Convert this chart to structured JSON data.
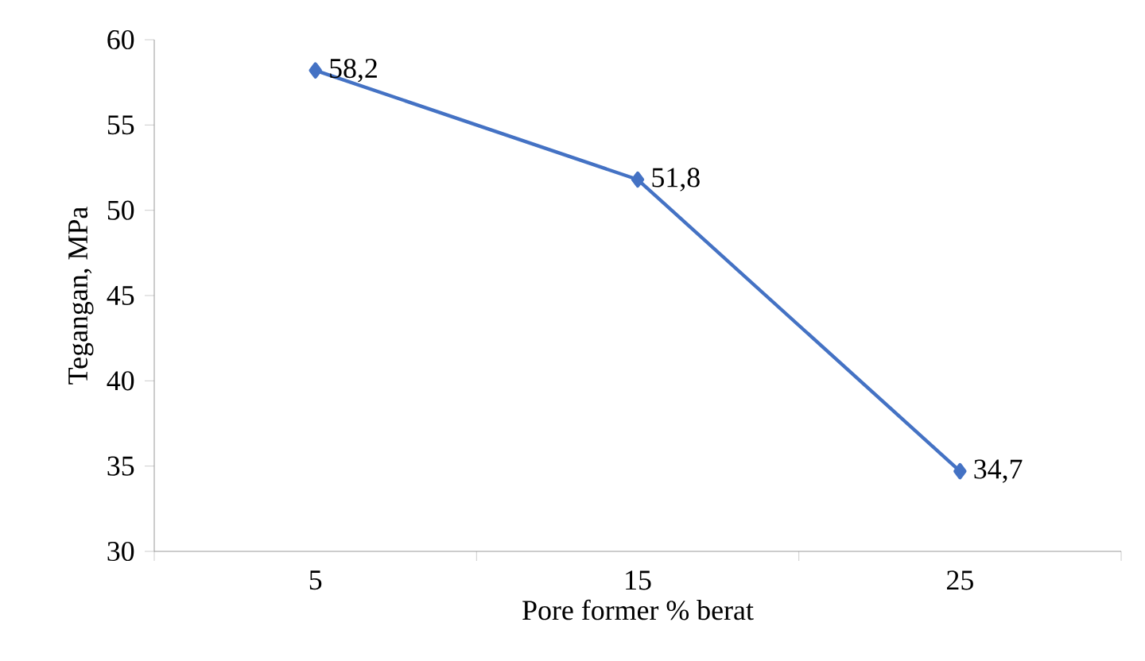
{
  "chart_data": {
    "type": "line",
    "xlabel": "Pore former % berat",
    "ylabel": "Tegangan, MPa",
    "categories": [
      "5",
      "15",
      "25"
    ],
    "series": [
      {
        "color": "#4472c4",
        "values": [
          58.2,
          51.8,
          34.7
        ],
        "value_labels": [
          "58,2",
          "51,8",
          "34,7"
        ]
      }
    ],
    "ylim": [
      30,
      60
    ],
    "yticks": [
      30,
      35,
      40,
      45,
      50,
      55,
      60
    ],
    "marker": "diamond",
    "line_style": "solid",
    "grid": false
  }
}
